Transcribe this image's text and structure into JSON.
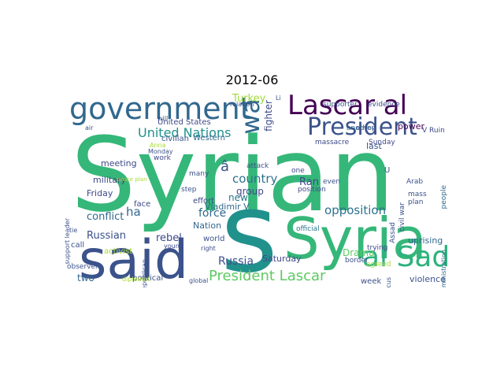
{
  "figure": {
    "title": "2012-06"
  },
  "wordcloud": {
    "words": [
      {
        "text": "Syrian",
        "color": "#35b779"
      },
      {
        "text": "s",
        "color": "#21918c"
      },
      {
        "text": "said",
        "color": "#3b528b"
      },
      {
        "text": "Syria",
        "color": "#35b779"
      },
      {
        "text": "government",
        "color": "#31688e"
      },
      {
        "text": "Lascar al",
        "color": "#440154"
      },
      {
        "text": "President",
        "color": "#3b528b"
      },
      {
        "text": "wa",
        "color": "#31688e"
      },
      {
        "text": "al Sad",
        "color": "#2db27d"
      },
      {
        "text": "President Lascar",
        "color": "#5ec962"
      },
      {
        "text": "United Nations",
        "color": "#21918c"
      },
      {
        "text": "opposition",
        "color": "#2c728e"
      },
      {
        "text": "Russia",
        "color": "#3b528b"
      },
      {
        "text": "Russian",
        "color": "#3b528b"
      },
      {
        "text": "country",
        "color": "#2c728e"
      },
      {
        "text": "force",
        "color": "#31688e"
      },
      {
        "text": "ha",
        "color": "#31688e"
      },
      {
        "text": "conflict",
        "color": "#31688e"
      },
      {
        "text": "rebel",
        "color": "#3e4989"
      },
      {
        "text": "Ran",
        "color": "#3e4989"
      },
      {
        "text": "Turkey",
        "color": "#9fda3a"
      },
      {
        "text": "fighter",
        "color": "#3e4989"
      },
      {
        "text": "group",
        "color": "#3e4989"
      },
      {
        "text": "new",
        "color": "#2a788e"
      },
      {
        "text": "Saturday",
        "color": "#3e4989"
      },
      {
        "text": "violence",
        "color": "#3b528b"
      },
      {
        "text": "uprising",
        "color": "#31688e"
      },
      {
        "text": "two",
        "color": "#31688e"
      },
      {
        "text": "Drama",
        "color": "#5ec962"
      },
      {
        "text": "Vladimir V",
        "color": "#31688e"
      },
      {
        "text": "Nation",
        "color": "#31688e"
      },
      {
        "text": "military",
        "color": "#3e4989"
      },
      {
        "text": "Friday",
        "color": "#3e4989"
      },
      {
        "text": "meeting",
        "color": "#3e4989"
      },
      {
        "text": "United States",
        "color": "#3e4989"
      },
      {
        "text": "Western",
        "color": "#31688e"
      },
      {
        "text": "political",
        "color": "#3b528b"
      },
      {
        "text": "world",
        "color": "#3b528b"
      },
      {
        "text": "effort",
        "color": "#3e4989"
      },
      {
        "text": "activist",
        "color": "#a8db34"
      },
      {
        "text": "face",
        "color": "#3e4989"
      },
      {
        "text": "call",
        "color": "#3b528b"
      },
      {
        "text": "week",
        "color": "#3b528b"
      },
      {
        "text": "last",
        "color": "#3b528b"
      },
      {
        "text": "position",
        "color": "#3e4989"
      },
      {
        "text": "official",
        "color": "#2a788e"
      },
      {
        "text": "massacre",
        "color": "#3e4989"
      },
      {
        "text": "supporter",
        "color": "#3b528b"
      },
      {
        "text": "evidence",
        "color": "#3e4989"
      },
      {
        "text": "Sunday",
        "color": "#3e4989"
      },
      {
        "text": "V Ruin",
        "color": "#3e4989"
      },
      {
        "text": "power",
        "color": "#440154"
      },
      {
        "text": "plan",
        "color": "#3b528b"
      },
      {
        "text": "Arab",
        "color": "#3b528b"
      },
      {
        "text": "mass",
        "color": "#3b528b"
      },
      {
        "text": "agreed",
        "color": "#a8db34"
      },
      {
        "text": "trying",
        "color": "#3e4989"
      },
      {
        "text": "border",
        "color": "#3b528b"
      },
      {
        "text": "attack",
        "color": "#3b528b"
      },
      {
        "text": "step",
        "color": "#3b528b"
      },
      {
        "text": "many",
        "color": "#3b528b"
      },
      {
        "text": "young",
        "color": "#3e4989"
      },
      {
        "text": "right",
        "color": "#3e4989"
      },
      {
        "text": "work",
        "color": "#3e4989"
      },
      {
        "text": "civilian",
        "color": "#3b528b"
      },
      {
        "text": "Anna",
        "color": "#a8db34"
      },
      {
        "text": "Monday",
        "color": "#3b528b"
      },
      {
        "text": "will",
        "color": "#3b528b"
      },
      {
        "text": "another",
        "color": "#31688e"
      },
      {
        "text": "even",
        "color": "#3b528b"
      },
      {
        "text": "observer",
        "color": "#3b528b"
      },
      {
        "text": "support leader",
        "color": "#3b528b"
      },
      {
        "text": "tie",
        "color": "#3b528b"
      },
      {
        "text": "diplomat",
        "color": "#a8db34"
      },
      {
        "text": "global",
        "color": "#3b528b"
      },
      {
        "text": "Republican",
        "color": "#3b528b"
      },
      {
        "text": "Damascus",
        "color": "#3b528b"
      },
      {
        "text": "administration",
        "color": "#31688e"
      },
      {
        "text": "people",
        "color": "#31688e"
      },
      {
        "text": "civil war",
        "color": "#3b528b"
      },
      {
        "text": "Assad",
        "color": "#3b528b"
      },
      {
        "text": "envoy",
        "color": "#3b528b"
      },
      {
        "text": "relation",
        "color": "#3b528b"
      },
      {
        "text": "air",
        "color": "#3b528b"
      },
      {
        "text": "peace plan",
        "color": "#a8db34"
      },
      {
        "text": "Li",
        "color": "#3b528b"
      },
      {
        "text": "â",
        "color": "#3b528b"
      },
      {
        "text": "one",
        "color": "#3e4989"
      },
      {
        "text": "U",
        "color": "#3b528b"
      }
    ]
  }
}
